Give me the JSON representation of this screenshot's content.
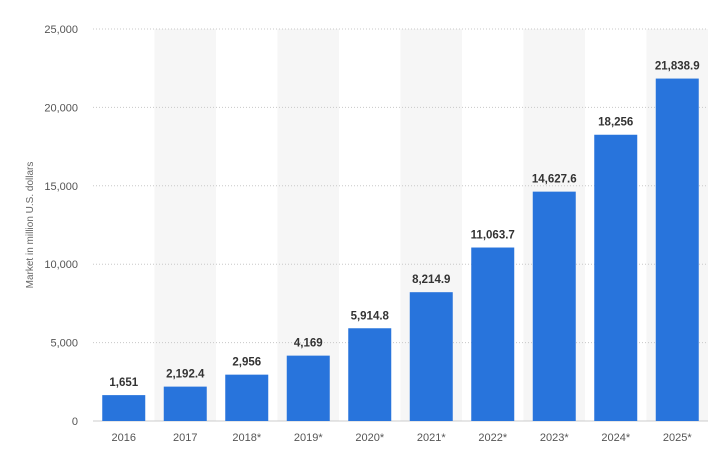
{
  "chart_data": {
    "type": "bar",
    "ylabel": "Market in million U.S. dollars",
    "xlabel": "",
    "title": "",
    "ylim": [
      0,
      25000
    ],
    "yticks": [
      0,
      5000,
      10000,
      15000,
      20000,
      25000
    ],
    "ytick_labels": [
      "0",
      "5,000",
      "10,000",
      "15,000",
      "20,000",
      "25,000"
    ],
    "categories": [
      "2016",
      "2017",
      "2018*",
      "2019*",
      "2020*",
      "2021*",
      "2022*",
      "2023*",
      "2024*",
      "2025*"
    ],
    "values": [
      1651,
      2192.4,
      2956,
      4169,
      5914.8,
      8214.9,
      11063.7,
      14627.6,
      18256,
      21838.9
    ],
    "value_labels": [
      "1,651",
      "2,192.4",
      "2,956",
      "4,169",
      "5,914.8",
      "8,214.9",
      "11,063.7",
      "14,627.6",
      "18,256",
      "21,838.9"
    ],
    "bar_color": "#2874dc",
    "band_color": "#f6f6f6",
    "grid": true
  }
}
